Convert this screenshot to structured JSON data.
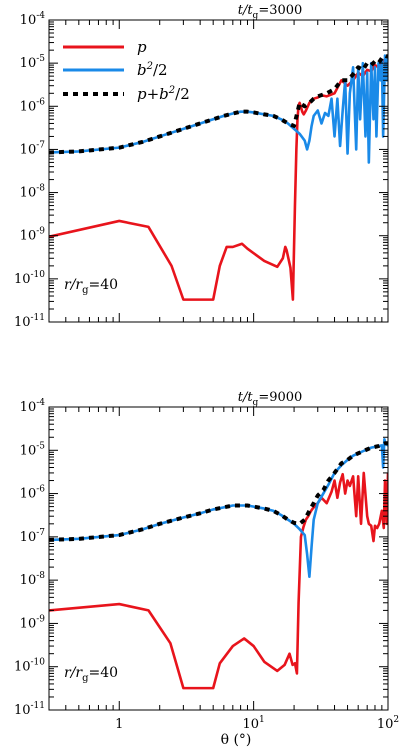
{
  "colors": {
    "p": "#e8141c",
    "b2": "#1a8ae8",
    "sum": "#000000"
  },
  "xlabel": "θ (°)",
  "x_ticks": [
    {
      "value": 1,
      "base": "1",
      "exp": ""
    },
    {
      "value": 10,
      "base": "10",
      "exp": "1"
    },
    {
      "value": 100,
      "base": "10",
      "exp": "2"
    }
  ],
  "y_ticks": [
    {
      "value": 1e-11,
      "base": "10",
      "exp": "-11"
    },
    {
      "value": 1e-10,
      "base": "10",
      "exp": "-10"
    },
    {
      "value": 1e-09,
      "base": "10",
      "exp": "-9"
    },
    {
      "value": 1e-08,
      "base": "10",
      "exp": "-8"
    },
    {
      "value": 1e-07,
      "base": "10",
      "exp": "-7"
    },
    {
      "value": 1e-06,
      "base": "10",
      "exp": "-6"
    },
    {
      "value": 1e-05,
      "base": "10",
      "exp": "-5"
    },
    {
      "value": 0.0001,
      "base": "10",
      "exp": "-4"
    }
  ],
  "chart_data": [
    {
      "type": "line",
      "title": "t/tg=3000",
      "title_parts": {
        "a": "t",
        "b": "/t",
        "sub": "g",
        "rest": "=3000"
      },
      "annotation": {
        "a": "r",
        "b": "/r",
        "sub": "g",
        "rest": "=40"
      },
      "x_scale": "log",
      "y_scale": "log",
      "xlim": [
        0.3,
        100
      ],
      "ylim": [
        1e-11,
        0.0001
      ],
      "legend_position": "top-left",
      "series": [
        {
          "key": "p",
          "name": "p",
          "label_parts": {
            "main": "p",
            "sup": ""
          },
          "style": "solid",
          "x": [
            0.3,
            1.0,
            1.65,
            2.45,
            3.0,
            5.0,
            5.6,
            6.3,
            7.0,
            8.2,
            9.0,
            12.0,
            15.0,
            16.5,
            17.2,
            17.6,
            18.8,
            19.6,
            20.3,
            20.8,
            21.2,
            21.6,
            22.0,
            23.0,
            23.6,
            24.5,
            26,
            28,
            30,
            32,
            35,
            40,
            45,
            50,
            55,
            60,
            65,
            70,
            75,
            80,
            85,
            90,
            95,
            100
          ],
          "y": [
            9.5e-10,
            2.2e-09,
            1.6e-09,
            2e-10,
            3.3e-11,
            3.3e-11,
            2e-10,
            5.5e-10,
            5.5e-10,
            6.5e-10,
            5e-10,
            2.6e-10,
            1.9e-10,
            3e-10,
            5.5e-10,
            4.6e-10,
            1.8e-10,
            3.3e-11,
            5e-09,
            1e-07,
            5e-07,
            1.05e-06,
            1.2e-06,
            7.5e-07,
            6.5e-07,
            8e-07,
            1.2e-06,
            1.5e-06,
            1.6e-06,
            1.8e-06,
            1.7e-06,
            2e-06,
            4e-06,
            3e-06,
            4e-06,
            6e-06,
            5e-06,
            7e-06,
            6.5e-06,
            9e-06,
            8e-06,
            1.1e-05,
            1.2e-05,
            9e-06
          ]
        },
        {
          "key": "b2",
          "name": "b2/2",
          "label_parts": {
            "main": "b",
            "sup": "2",
            "rest": "/2"
          },
          "style": "solid",
          "x": [
            0.3,
            0.5,
            1.0,
            1.5,
            2.0,
            3.0,
            4.0,
            5.0,
            6.0,
            7.0,
            8.0,
            9.0,
            10.0,
            12.0,
            14.0,
            16.0,
            18.0,
            20.0,
            22.0,
            24.0,
            25.0,
            26.0,
            27.0,
            28.0,
            30.0,
            32.0,
            34.0,
            36.0,
            38.0,
            40.0,
            42.0,
            44.0,
            46.0,
            48.0,
            50.0,
            52.0,
            55.0,
            58.0,
            60.0,
            62.0,
            65.0,
            68.0,
            70.0,
            72.0,
            75.0,
            78.0,
            80.0,
            82.0,
            85.0,
            88.0,
            90.0,
            92.0,
            95.0,
            98.0,
            100.0
          ],
          "y": [
            8.5e-08,
            9e-08,
            1.1e-07,
            1.5e-07,
            2e-07,
            3e-07,
            4e-07,
            5e-07,
            6e-07,
            6.8e-07,
            7.5e-07,
            7.5e-07,
            7.2e-07,
            6.5e-07,
            6e-07,
            5e-07,
            4e-07,
            3e-07,
            2.3e-07,
            1.6e-07,
            1e-07,
            1.6e-07,
            3.5e-07,
            6e-07,
            8e-07,
            4e-07,
            7e-07,
            6e-07,
            1.5e-06,
            2e-07,
            1.5e-06,
            1.2e-07,
            8e-07,
            4e-06,
            8e-08,
            2e-06,
            8e-06,
            1e-07,
            8e-06,
            5e-07,
            1e-05,
            2e-07,
            6e-06,
            5e-08,
            1e-05,
            5e-07,
            8e-06,
            2e-07,
            1e-05,
            4e-06,
            1.2e-05,
            2e-07,
            1.5e-05,
            4e-06,
            1.3e-05
          ]
        },
        {
          "key": "sum",
          "name": "p+b2/2",
          "label_parts": {
            "main": "p+b",
            "sup": "2",
            "rest": "/2"
          },
          "style": "dashed",
          "x": [
            0.3,
            0.5,
            1.0,
            1.5,
            2.0,
            3.0,
            4.0,
            5.0,
            6.0,
            7.0,
            8.0,
            9.0,
            10.0,
            12.0,
            14.0,
            16.0,
            18.0,
            20.0,
            22.0,
            24.0,
            26.0,
            28.0,
            30.0,
            35.0,
            40.0,
            45.0,
            50.0,
            55.0,
            60.0,
            65.0,
            70.0,
            75.0,
            80.0,
            85.0,
            90.0,
            95.0,
            100.0
          ],
          "y": [
            8.5e-08,
            9e-08,
            1.1e-07,
            1.5e-07,
            2e-07,
            3e-07,
            4e-07,
            5e-07,
            6e-07,
            6.8e-07,
            7.5e-07,
            7.5e-07,
            7.2e-07,
            6.5e-07,
            6e-07,
            5e-07,
            4e-07,
            3.5e-07,
            1.2e-06,
            1e-06,
            1.2e-06,
            1.5e-06,
            1.7e-06,
            2e-06,
            2.5e-06,
            4e-06,
            4e-06,
            5.5e-06,
            8e-06,
            7e-06,
            1e-05,
            9e-06,
            1.1e-05,
            1e-05,
            1.3e-05,
            1.5e-05,
            1.4e-05
          ]
        }
      ]
    },
    {
      "type": "line",
      "title": "t/tg=9000",
      "title_parts": {
        "a": "t",
        "b": "/t",
        "sub": "g",
        "rest": "=9000"
      },
      "annotation": {
        "a": "r",
        "b": "/r",
        "sub": "g",
        "rest": "=40"
      },
      "x_scale": "log",
      "y_scale": "log",
      "xlim": [
        0.3,
        100
      ],
      "ylim": [
        1e-11,
        0.0001
      ],
      "series": [
        {
          "key": "p",
          "name": "p",
          "style": "solid",
          "x": [
            0.3,
            1.0,
            1.65,
            2.4,
            3.0,
            5.0,
            5.6,
            7.0,
            8.5,
            10.0,
            12.0,
            15.0,
            17.0,
            18.5,
            19.5,
            20.3,
            21.0,
            21.6,
            22.5,
            23.5,
            24.5,
            25.5,
            26.5,
            27.5,
            30,
            32,
            35,
            38,
            40,
            42,
            44,
            46,
            48,
            50,
            52,
            55,
            58,
            60,
            63,
            66,
            70,
            72,
            75,
            78,
            80,
            83,
            86,
            90,
            93,
            95,
            98,
            100
          ],
          "y": [
            2e-09,
            2.8e-09,
            2e-09,
            3.5e-10,
            3.2e-11,
            3.2e-11,
            1.2e-10,
            3e-10,
            4.5e-10,
            3e-10,
            1.3e-10,
            8e-11,
            1.1e-10,
            2e-10,
            1.1e-10,
            1.2e-10,
            7e-11,
            3e-09,
            1e-07,
            1.7e-07,
            2.5e-07,
            3e-07,
            3.8e-07,
            4.5e-07,
            6e-07,
            8e-07,
            6e-07,
            1.1e-06,
            2e-06,
            8e-07,
            1.8e-06,
            2.8e-06,
            1e-06,
            2e-06,
            1.5e-06,
            2.5e-06,
            3e-07,
            2.5e-06,
            2e-07,
            3e-06,
            3e-07,
            2e-07,
            1.8e-07,
            8e-08,
            1.8e-07,
            1.6e-07,
            2e-07,
            4e-07,
            1.6e-07,
            2e-06,
            2e-07,
            3e-06
          ]
        },
        {
          "key": "b2",
          "name": "b2/2",
          "style": "solid",
          "x": [
            0.3,
            0.5,
            1.0,
            1.5,
            2.0,
            3.0,
            4.0,
            5.0,
            6.0,
            7.0,
            8.0,
            9.0,
            10.0,
            12.0,
            14.0,
            16.0,
            18.0,
            20.0,
            22.0,
            24.0,
            25.0,
            26.0,
            27.0,
            28.0,
            30.0,
            33.0,
            36.0,
            40.0,
            45.0,
            50.0,
            55.0,
            60.0,
            65.0,
            70.0,
            75.0,
            80.0,
            85.0,
            90.0,
            92.0,
            94.0,
            96.0,
            100.0
          ],
          "y": [
            8.5e-08,
            9e-08,
            1.1e-07,
            1.5e-07,
            2e-07,
            2.8e-07,
            3.5e-07,
            4.3e-07,
            4.8e-07,
            5.3e-07,
            5.3e-07,
            5.3e-07,
            5e-07,
            4.5e-07,
            4e-07,
            3.2e-07,
            2.5e-07,
            2e-07,
            1.5e-07,
            1.1e-07,
            4e-08,
            1.2e-08,
            6e-08,
            2.5e-07,
            6e-07,
            1e-06,
            1.6e-06,
            3e-06,
            4.5e-06,
            6e-06,
            7.5e-06,
            8.5e-06,
            9.5e-06,
            1.05e-05,
            1.15e-05,
            1.2e-05,
            1.25e-05,
            1.3e-05,
            4e-06,
            1.8e-05,
            1.4e-05,
            1.3e-05
          ]
        },
        {
          "key": "sum",
          "name": "p+b2/2",
          "style": "dashed",
          "x": [
            0.3,
            0.5,
            1.0,
            1.5,
            2.0,
            3.0,
            4.0,
            5.0,
            6.0,
            7.0,
            8.0,
            9.0,
            10.0,
            12.0,
            14.0,
            16.0,
            18.0,
            20.0,
            22.0,
            24.0,
            26.0,
            28.0,
            30.0,
            33.0,
            36.0,
            40.0,
            45.0,
            50.0,
            55.0,
            60.0,
            65.0,
            70.0,
            75.0,
            80.0,
            85.0,
            90.0,
            95.0,
            100.0
          ],
          "y": [
            8.5e-08,
            9e-08,
            1.1e-07,
            1.5e-07,
            2e-07,
            2.8e-07,
            3.5e-07,
            4.3e-07,
            4.8e-07,
            5.3e-07,
            5.3e-07,
            5.3e-07,
            5e-07,
            4.5e-07,
            4e-07,
            3.2e-07,
            2.5e-07,
            2.1e-07,
            2e-07,
            2.5e-07,
            4e-07,
            6e-07,
            9e-07,
            1.2e-06,
            2e-06,
            3e-06,
            5e-06,
            6e-06,
            7.5e-06,
            8.5e-06,
            9.5e-06,
            1.05e-05,
            1.15e-05,
            1.2e-05,
            1.25e-05,
            1.35e-05,
            1.45e-05,
            1.45e-05
          ]
        }
      ]
    }
  ]
}
